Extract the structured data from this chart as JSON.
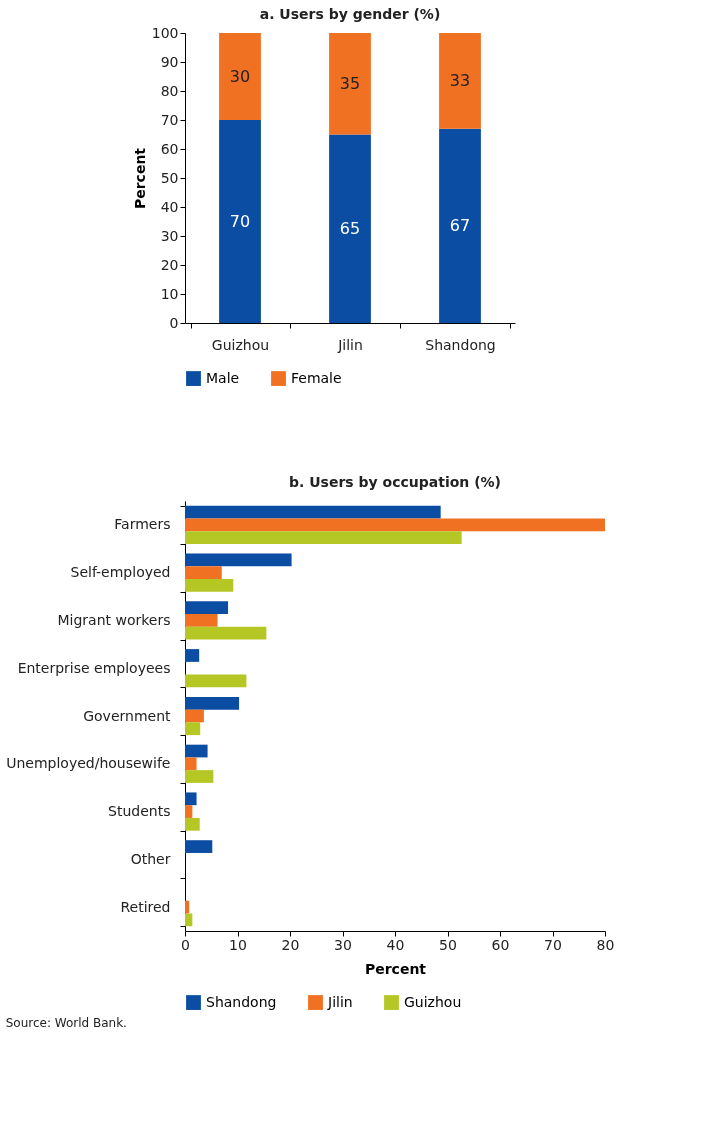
{
  "chart_data": [
    {
      "type": "bar",
      "title": "a. Users by gender (%)",
      "ylabel": "Percent",
      "stacked": true,
      "data_labels": true,
      "legend": "bottom",
      "grid": false,
      "categories": [
        "Guizhou",
        "Jilin",
        "Shandong"
      ],
      "ylim": [
        0,
        100
      ],
      "yticks": [
        0,
        10,
        20,
        30,
        40,
        50,
        60,
        70,
        80,
        90,
        100
      ],
      "series": [
        {
          "name": "Male",
          "color": "#0a4da2",
          "values": [
            70,
            65,
            67
          ]
        },
        {
          "name": "Female",
          "color": "#f07122",
          "values": [
            30,
            35,
            33
          ]
        }
      ]
    },
    {
      "type": "bar",
      "orientation": "horizontal",
      "title": "b. Users by occupation (%)",
      "xlabel": "Percent",
      "legend": "bottom",
      "grid": false,
      "categories": [
        "Farmers",
        "Self-employed",
        "Migrant workers",
        "Enterprise employees",
        "Government",
        "Unemployed/housewife",
        "Students",
        "Other",
        "Retired"
      ],
      "xlim": [
        0,
        80
      ],
      "xticks": [
        0,
        10,
        20,
        30,
        40,
        50,
        60,
        70,
        80
      ],
      "annotations": [
        "Source: World Bank."
      ],
      "series": [
        {
          "name": "Shandong",
          "color": "#0a4da2",
          "values": [
            48.7,
            20.3,
            8.2,
            2.7,
            10.3,
            4.3,
            2.2,
            5.2,
            null
          ]
        },
        {
          "name": "Jilin",
          "color": "#f07122",
          "values": [
            80,
            7.0,
            6.2,
            0,
            3.6,
            2.2,
            1.4,
            null,
            0.8
          ]
        },
        {
          "name": "Guizhou",
          "color": "#b5c725",
          "values": [
            52.7,
            9.2,
            15.5,
            11.7,
            2.9,
            5.4,
            2.8,
            null,
            1.4
          ]
        }
      ]
    }
  ]
}
